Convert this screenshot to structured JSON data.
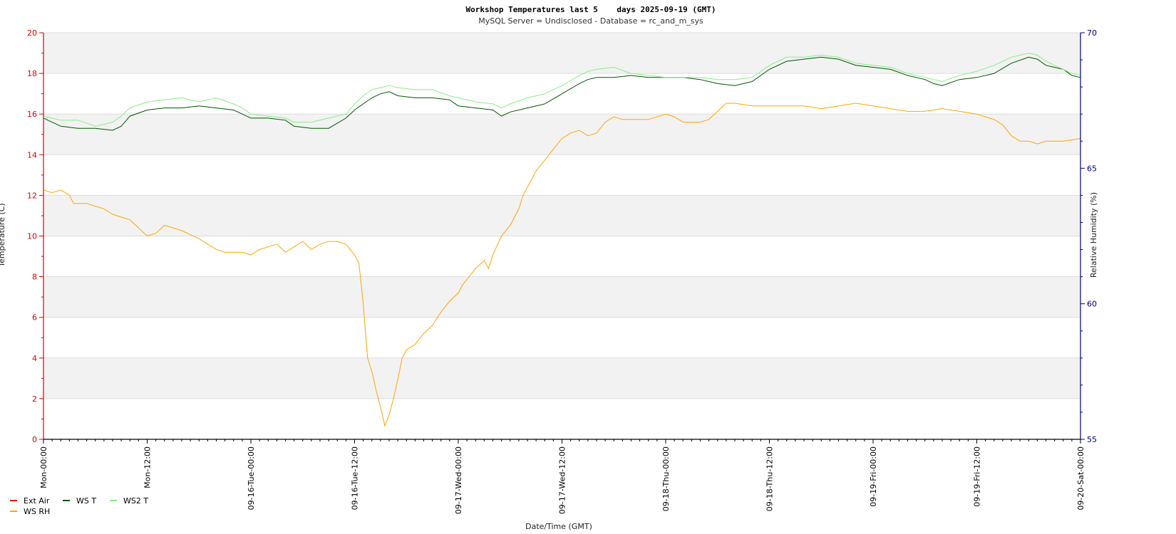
{
  "chart_data": {
    "type": "line",
    "title": "Workshop Temperatures last 5    days 2025-09-19 (GMT)",
    "subtitle": "MySQL Server = Undisclosed - Database = rc_and_m_sys",
    "xlabel": "Date/Time (GMT)",
    "ylabel": "Temperature (C)",
    "y2label": "Relative Humidity (%)",
    "ylim": [
      0,
      20
    ],
    "y2lim": [
      55,
      70
    ],
    "xlim": [
      0,
      120
    ],
    "x_unit": "hours from Mon-00:00",
    "yticks": [
      "0",
      "2",
      "4",
      "6",
      "8",
      "10",
      "12",
      "14",
      "16",
      "18",
      "20"
    ],
    "y2ticks": [
      "55",
      "60",
      "65",
      "70"
    ],
    "x_ticks": [
      {
        "x": 0,
        "label": "Mon-00:00"
      },
      {
        "x": 12,
        "label": "Mon-12:00"
      },
      {
        "x": 24,
        "label": "09-16-Tue-00:00"
      },
      {
        "x": 36,
        "label": "09-16-Tue-12:00"
      },
      {
        "x": 48,
        "label": "09-17-Wed-00:00"
      },
      {
        "x": 60,
        "label": "09-17-Wed-12:00"
      },
      {
        "x": 72,
        "label": "09-18-Thu-00:00"
      },
      {
        "x": 84,
        "label": "09-18-Thu-12:00"
      },
      {
        "x": 96,
        "label": "09-19-Fri-00:00"
      },
      {
        "x": 108,
        "label": "09-19-Fri-12:00"
      },
      {
        "x": 120,
        "label": "09-20-Sat-00:00"
      }
    ],
    "grid": true,
    "legend_position": "bottom-left",
    "colors": {
      "left_axis": "#e00000",
      "right_axis": "#000080",
      "band": "#f2f2f2",
      "gridline": "#dddddd"
    },
    "series": [
      {
        "name": "Ext Air",
        "axis": "left",
        "color": "#ff0000",
        "points": []
      },
      {
        "name": "WS T",
        "axis": "left",
        "color": "#005500",
        "points": [
          [
            0,
            15.8
          ],
          [
            1,
            15.6
          ],
          [
            2,
            15.4
          ],
          [
            4,
            15.3
          ],
          [
            6,
            15.3
          ],
          [
            8,
            15.2
          ],
          [
            9,
            15.4
          ],
          [
            10,
            15.9
          ],
          [
            12,
            16.2
          ],
          [
            14,
            16.3
          ],
          [
            16,
            16.3
          ],
          [
            18,
            16.4
          ],
          [
            20,
            16.3
          ],
          [
            22,
            16.2
          ],
          [
            23,
            16.0
          ],
          [
            24,
            15.8
          ],
          [
            26,
            15.8
          ],
          [
            28,
            15.7
          ],
          [
            29,
            15.4
          ],
          [
            31,
            15.3
          ],
          [
            33,
            15.3
          ],
          [
            35,
            15.8
          ],
          [
            36,
            16.2
          ],
          [
            37,
            16.5
          ],
          [
            38,
            16.8
          ],
          [
            39,
            17.0
          ],
          [
            40,
            17.1
          ],
          [
            41,
            16.9
          ],
          [
            43,
            16.8
          ],
          [
            45,
            16.8
          ],
          [
            47,
            16.7
          ],
          [
            48,
            16.4
          ],
          [
            50,
            16.3
          ],
          [
            52,
            16.2
          ],
          [
            53,
            15.9
          ],
          [
            54,
            16.1
          ],
          [
            56,
            16.3
          ],
          [
            58,
            16.5
          ],
          [
            60,
            17.0
          ],
          [
            62,
            17.5
          ],
          [
            63,
            17.7
          ],
          [
            64,
            17.8
          ],
          [
            66,
            17.8
          ],
          [
            68,
            17.9
          ],
          [
            70,
            17.8
          ],
          [
            72,
            17.8
          ],
          [
            74,
            17.8
          ],
          [
            76,
            17.7
          ],
          [
            78,
            17.5
          ],
          [
            80,
            17.4
          ],
          [
            82,
            17.6
          ],
          [
            84,
            18.2
          ],
          [
            86,
            18.6
          ],
          [
            88,
            18.7
          ],
          [
            90,
            18.8
          ],
          [
            92,
            18.7
          ],
          [
            94,
            18.4
          ],
          [
            96,
            18.3
          ],
          [
            98,
            18.2
          ],
          [
            100,
            17.9
          ],
          [
            102,
            17.7
          ],
          [
            103,
            17.5
          ],
          [
            104,
            17.4
          ],
          [
            106,
            17.7
          ],
          [
            108,
            17.8
          ],
          [
            110,
            18.0
          ],
          [
            112,
            18.5
          ],
          [
            114,
            18.8
          ],
          [
            115,
            18.7
          ],
          [
            116,
            18.4
          ],
          [
            118,
            18.2
          ],
          [
            119,
            17.9
          ],
          [
            120,
            17.8
          ]
        ]
      },
      {
        "name": "WS2 T",
        "axis": "left",
        "color": "#88ee88",
        "points": [
          [
            0,
            15.9
          ],
          [
            1,
            15.8
          ],
          [
            2,
            15.7
          ],
          [
            4,
            15.7
          ],
          [
            6,
            15.4
          ],
          [
            8,
            15.6
          ],
          [
            9,
            15.9
          ],
          [
            10,
            16.3
          ],
          [
            12,
            16.6
          ],
          [
            14,
            16.7
          ],
          [
            16,
            16.8
          ],
          [
            18,
            16.6
          ],
          [
            20,
            16.8
          ],
          [
            22,
            16.5
          ],
          [
            23,
            16.3
          ],
          [
            24,
            16.0
          ],
          [
            26,
            15.9
          ],
          [
            28,
            15.8
          ],
          [
            29,
            15.6
          ],
          [
            31,
            15.6
          ],
          [
            33,
            15.8
          ],
          [
            35,
            16.0
          ],
          [
            36,
            16.5
          ],
          [
            37,
            16.9
          ],
          [
            38,
            17.2
          ],
          [
            39,
            17.3
          ],
          [
            40,
            17.4
          ],
          [
            41,
            17.3
          ],
          [
            43,
            17.2
          ],
          [
            45,
            17.2
          ],
          [
            47,
            16.9
          ],
          [
            48,
            16.8
          ],
          [
            50,
            16.6
          ],
          [
            52,
            16.5
          ],
          [
            53,
            16.3
          ],
          [
            54,
            16.5
          ],
          [
            56,
            16.8
          ],
          [
            58,
            17.0
          ],
          [
            60,
            17.4
          ],
          [
            62,
            17.9
          ],
          [
            63,
            18.1
          ],
          [
            64,
            18.2
          ],
          [
            66,
            18.3
          ],
          [
            68,
            18.0
          ],
          [
            70,
            17.9
          ],
          [
            72,
            17.8
          ],
          [
            74,
            17.8
          ],
          [
            76,
            17.8
          ],
          [
            78,
            17.7
          ],
          [
            80,
            17.7
          ],
          [
            82,
            17.8
          ],
          [
            84,
            18.4
          ],
          [
            86,
            18.8
          ],
          [
            88,
            18.8
          ],
          [
            90,
            18.9
          ],
          [
            92,
            18.8
          ],
          [
            94,
            18.5
          ],
          [
            96,
            18.4
          ],
          [
            98,
            18.3
          ],
          [
            100,
            18.0
          ],
          [
            102,
            17.8
          ],
          [
            103,
            17.7
          ],
          [
            104,
            17.6
          ],
          [
            106,
            17.9
          ],
          [
            108,
            18.1
          ],
          [
            110,
            18.4
          ],
          [
            112,
            18.8
          ],
          [
            114,
            19.0
          ],
          [
            115,
            18.9
          ],
          [
            116,
            18.6
          ],
          [
            118,
            18.2
          ],
          [
            119,
            18.0
          ],
          [
            120,
            17.9
          ]
        ]
      },
      {
        "name": "WS RH",
        "axis": "right",
        "color": "#ffa500",
        "points": [
          [
            0,
            64.2
          ],
          [
            1,
            64.1
          ],
          [
            2,
            64.2
          ],
          [
            3,
            64.0
          ],
          [
            3.5,
            63.7
          ],
          [
            5,
            63.7
          ],
          [
            6,
            63.6
          ],
          [
            7,
            63.5
          ],
          [
            8,
            63.3
          ],
          [
            9,
            63.2
          ],
          [
            10,
            63.1
          ],
          [
            11,
            62.8
          ],
          [
            12,
            62.5
          ],
          [
            13,
            62.6
          ],
          [
            14,
            62.9
          ],
          [
            16,
            62.7
          ],
          [
            18,
            62.4
          ],
          [
            19,
            62.2
          ],
          [
            20,
            62.0
          ],
          [
            21,
            61.9
          ],
          [
            22,
            61.9
          ],
          [
            23,
            61.9
          ],
          [
            24,
            61.8
          ],
          [
            25,
            62.0
          ],
          [
            26,
            62.1
          ],
          [
            27,
            62.2
          ],
          [
            28,
            61.9
          ],
          [
            29,
            62.1
          ],
          [
            30,
            62.3
          ],
          [
            31,
            62.0
          ],
          [
            32,
            62.2
          ],
          [
            33,
            62.3
          ],
          [
            34,
            62.3
          ],
          [
            35,
            62.2
          ],
          [
            36,
            61.8
          ],
          [
            36.5,
            61.5
          ],
          [
            37,
            60.0
          ],
          [
            37.5,
            58.0
          ],
          [
            38,
            57.5
          ],
          [
            38.5,
            56.8
          ],
          [
            39,
            56.2
          ],
          [
            39.5,
            55.5
          ],
          [
            40,
            55.9
          ],
          [
            40.5,
            56.5
          ],
          [
            41,
            57.2
          ],
          [
            41.5,
            58.0
          ],
          [
            42,
            58.3
          ],
          [
            43,
            58.5
          ],
          [
            44,
            58.9
          ],
          [
            45,
            59.2
          ],
          [
            46,
            59.7
          ],
          [
            47,
            60.1
          ],
          [
            48,
            60.4
          ],
          [
            48.5,
            60.7
          ],
          [
            49,
            60.9
          ],
          [
            50,
            61.3
          ],
          [
            51,
            61.6
          ],
          [
            51.5,
            61.3
          ],
          [
            52,
            61.8
          ],
          [
            53,
            62.5
          ],
          [
            54,
            62.9
          ],
          [
            55,
            63.5
          ],
          [
            55.5,
            64.0
          ],
          [
            56,
            64.3
          ],
          [
            57,
            64.9
          ],
          [
            58,
            65.3
          ],
          [
            59,
            65.7
          ],
          [
            60,
            66.1
          ],
          [
            61,
            66.3
          ],
          [
            62,
            66.4
          ],
          [
            63,
            66.2
          ],
          [
            64,
            66.3
          ],
          [
            65,
            66.7
          ],
          [
            66,
            66.9
          ],
          [
            67,
            66.8
          ],
          [
            68,
            66.8
          ],
          [
            70,
            66.8
          ],
          [
            72,
            67.0
          ],
          [
            73,
            66.9
          ],
          [
            74,
            66.7
          ],
          [
            76,
            66.7
          ],
          [
            77,
            66.8
          ],
          [
            78,
            67.1
          ],
          [
            79,
            67.4
          ],
          [
            80,
            67.4
          ],
          [
            82,
            67.3
          ],
          [
            84,
            67.3
          ],
          [
            86,
            67.3
          ],
          [
            88,
            67.3
          ],
          [
            90,
            67.2
          ],
          [
            92,
            67.3
          ],
          [
            94,
            67.4
          ],
          [
            96,
            67.3
          ],
          [
            98,
            67.2
          ],
          [
            100,
            67.1
          ],
          [
            102,
            67.1
          ],
          [
            104,
            67.2
          ],
          [
            106,
            67.1
          ],
          [
            108,
            67.0
          ],
          [
            109,
            66.9
          ],
          [
            110,
            66.8
          ],
          [
            111,
            66.6
          ],
          [
            112,
            66.2
          ],
          [
            113,
            66.0
          ],
          [
            114,
            66.0
          ],
          [
            115,
            65.9
          ],
          [
            116,
            66.0
          ],
          [
            118,
            66.0
          ],
          [
            120,
            66.1
          ]
        ]
      }
    ]
  }
}
